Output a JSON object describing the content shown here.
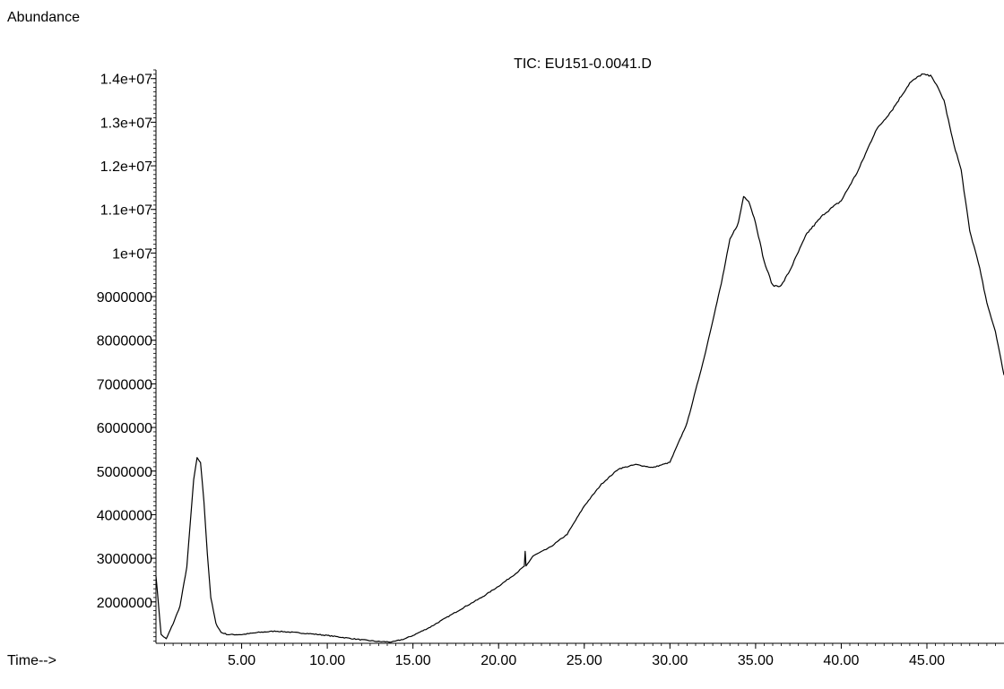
{
  "chart_data": {
    "type": "line",
    "title": "TIC: EU151-0.0041.D",
    "ylabel": "Abundance",
    "xlabel": "Time-->",
    "xlim": [
      0.0,
      49.5
    ],
    "ylim": [
      1050000,
      14200000
    ],
    "x_ticks": [
      5,
      10,
      15,
      20,
      25,
      30,
      35,
      40,
      45
    ],
    "x_tick_labels": [
      "5.00",
      "10.00",
      "15.00",
      "20.00",
      "25.00",
      "30.00",
      "35.00",
      "40.00",
      "45.00"
    ],
    "y_ticks": [
      2000000,
      3000000,
      4000000,
      5000000,
      6000000,
      7000000,
      8000000,
      9000000,
      10000000,
      11000000,
      12000000,
      13000000,
      14000000
    ],
    "y_tick_labels": [
      "2000000",
      "3000000",
      "4000000",
      "5000000",
      "6000000",
      "7000000",
      "8000000",
      "9000000",
      "1e+07",
      "1.1e+07",
      "1.2e+07",
      "1.3e+07",
      "1.4e+07"
    ],
    "grid": false,
    "series": [
      {
        "x": [
          0.0,
          0.3,
          0.6,
          1.0,
          1.4,
          1.8,
          2.0,
          2.2,
          2.4,
          2.6,
          2.8,
          3.0,
          3.2,
          3.5,
          3.8,
          4.2,
          5.0,
          6.0,
          7.0,
          8.0,
          9.0,
          10.0,
          11.0,
          12.0,
          13.0,
          13.8,
          14.5,
          15.0,
          16.0,
          17.0,
          18.0,
          19.0,
          20.0,
          21.0,
          21.5,
          21.55,
          21.6,
          22.0,
          23.0,
          24.0,
          25.0,
          26.0,
          27.0,
          28.0,
          29.0,
          30.0,
          31.0,
          32.0,
          33.0,
          33.5,
          34.0,
          34.3,
          34.6,
          35.0,
          35.5,
          36.0,
          36.5,
          37.0,
          38.0,
          39.0,
          40.0,
          41.0,
          42.0,
          43.0,
          44.0,
          44.7,
          45.3,
          46.0,
          46.5,
          47.0,
          47.5,
          48.0,
          48.5,
          49.0,
          49.5
        ],
        "values": [
          2600000,
          1250000,
          1150000,
          1500000,
          1900000,
          2800000,
          3800000,
          4800000,
          5300000,
          5200000,
          4300000,
          3100000,
          2100000,
          1500000,
          1300000,
          1250000,
          1250000,
          1300000,
          1330000,
          1300000,
          1270000,
          1230000,
          1180000,
          1130000,
          1090000,
          1080000,
          1150000,
          1230000,
          1420000,
          1650000,
          1880000,
          2100000,
          2360000,
          2650000,
          2820000,
          3150000,
          2820000,
          3050000,
          3250000,
          3550000,
          4200000,
          4700000,
          5050000,
          5150000,
          5080000,
          5200000,
          6100000,
          7600000,
          9300000,
          10300000,
          10700000,
          11300000,
          11200000,
          10700000,
          9800000,
          9250000,
          9250000,
          9600000,
          10450000,
          10900000,
          11200000,
          11900000,
          12800000,
          13300000,
          13900000,
          14100000,
          14050000,
          13500000,
          12600000,
          11900000,
          10500000,
          9800000,
          8850000,
          8200000,
          7200000
        ]
      }
    ]
  }
}
